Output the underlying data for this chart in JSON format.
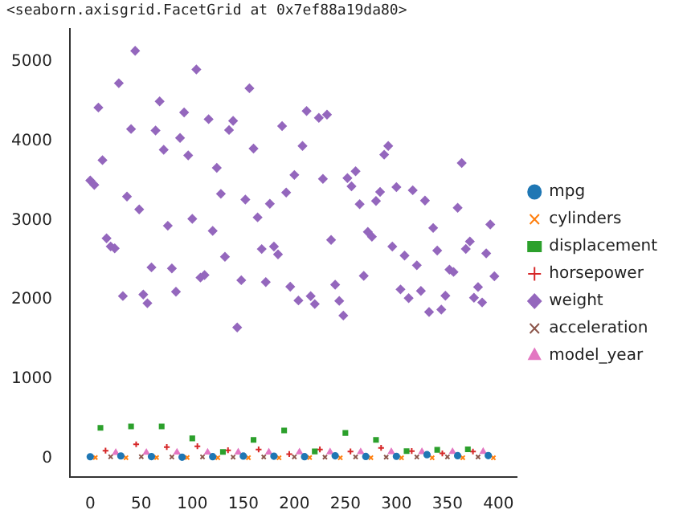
{
  "chart_data": {
    "type": "scatter",
    "annotations": [
      "<seaborn.axisgrid.FacetGrid at 0x7ef88a19da80>"
    ],
    "x": [
      0,
      4,
      8,
      12,
      16,
      20,
      24,
      28,
      32,
      36,
      40,
      44,
      48,
      52,
      56,
      60,
      64,
      68,
      72,
      76,
      80,
      84,
      88,
      92,
      96,
      100,
      104,
      108,
      112,
      116,
      120,
      124,
      128,
      132,
      136,
      140,
      144,
      148,
      152,
      156,
      160,
      164,
      168,
      172,
      176,
      180,
      184,
      188,
      192,
      196,
      200,
      204,
      208,
      212,
      216,
      220,
      224,
      228,
      232,
      236,
      240,
      244,
      248,
      252,
      256,
      260,
      264,
      268,
      272,
      276,
      280,
      284,
      288,
      292,
      296,
      300,
      304,
      308,
      312,
      316,
      320,
      324,
      328,
      332,
      336,
      340,
      344,
      348,
      352,
      356,
      360,
      364,
      368,
      372,
      376,
      380,
      384,
      388,
      392,
      396
    ],
    "xlim": [
      -20,
      418
    ],
    "xticks": [
      0,
      50,
      100,
      150,
      200,
      250,
      300,
      350,
      400
    ],
    "ylim": [
      -238,
      5417
    ],
    "yticks": [
      0,
      1000,
      2000,
      3000,
      4000,
      5000
    ],
    "grid": false,
    "legend": "right",
    "series": [
      {
        "name": "mpg",
        "color": "#1f77b4",
        "marker": "circle",
        "x": [
          0,
          30,
          60,
          90,
          120,
          150,
          180,
          210,
          240,
          270,
          300,
          330,
          360,
          390
        ],
        "values": [
          18,
          28,
          20,
          12,
          19,
          26,
          25,
          19,
          30,
          21,
          23,
          44,
          31,
          32
        ]
      },
      {
        "name": "cylinders",
        "color": "#ff7f0e",
        "marker": "cross",
        "x": [
          5,
          35,
          65,
          95,
          125,
          155,
          185,
          215,
          245,
          275,
          305,
          335,
          365,
          395
        ],
        "values": [
          8,
          6,
          8,
          8,
          6,
          6,
          4,
          8,
          4,
          6,
          4,
          4,
          6,
          4
        ]
      },
      {
        "name": "displacement",
        "color": "#2ca02c",
        "marker": "square",
        "x": [
          10,
          40,
          70,
          100,
          130,
          160,
          190,
          220,
          250,
          280,
          310,
          340,
          370
        ],
        "values": [
          383,
          400,
          400,
          250,
          79,
          231,
          350,
          85,
          318,
          231,
          89,
          105,
          112
        ]
      },
      {
        "name": "horsepower",
        "color": "#d62728",
        "marker": "plus",
        "x": [
          15,
          45,
          75,
          105,
          135,
          165,
          195,
          225,
          255,
          285,
          315,
          345,
          375
        ],
        "values": [
          95,
          175,
          140,
          150,
          100,
          110,
          52,
          110,
          85,
          130,
          90,
          60,
          84
        ]
      },
      {
        "name": "weight",
        "color": "#9467bd",
        "marker": "diamond",
        "values": [
          3504,
          3449,
          4425,
          3761,
          2774,
          2672,
          2648,
          4732,
          2046,
          3302,
          4154,
          5140,
          3139,
          2065,
          1955,
          2408,
          4135,
          4502,
          3892,
          2933,
          2395,
          2100,
          4042,
          4363,
          3821,
          3021,
          4906,
          2279,
          2310,
          4278,
          2868,
          3664,
          3336,
          2542,
          4141,
          4257,
          1649,
          2246,
          3264,
          4668,
          3907,
          3039,
          2639,
          2223,
          3211,
          2671,
          2572,
          4190,
          3353,
          2164,
          3574,
          1990,
          3940,
          4380,
          2045,
          1945,
          4295,
          3525,
          4335,
          2755,
          2190,
          1985,
          1800,
          3535,
          3430,
          3620,
          3205,
          2300,
          2855,
          2795,
          3245,
          3360,
          3830,
          3940,
          2670,
          3420,
          2130,
          2556,
          2019,
          3381,
          2434,
          2110,
          3250,
          1845,
          2905,
          2620,
          1875,
          2050,
          2380,
          2350,
          3160,
          3725,
          2640,
          2735,
          2025,
          2160,
          1965,
          2585,
          2950,
          2295
        ]
      },
      {
        "name": "acceleration",
        "color": "#8c564b",
        "marker": "cross",
        "x": [
          20,
          50,
          80,
          110,
          140,
          170,
          200,
          230,
          260,
          290,
          320,
          350,
          380
        ],
        "values": [
          17.5,
          19,
          14.5,
          16,
          14,
          15.5,
          16,
          12.8,
          15,
          13.2,
          14.5,
          16.4,
          15.5
        ]
      },
      {
        "name": "model_year",
        "color": "#e377c2",
        "marker": "triangle",
        "x": [
          25,
          55,
          85,
          115,
          145,
          175,
          205,
          235,
          265,
          295,
          325,
          355,
          385
        ],
        "values": [
          70,
          71,
          73,
          73,
          74,
          75,
          76,
          77,
          78,
          79,
          80,
          81,
          82
        ]
      }
    ]
  }
}
